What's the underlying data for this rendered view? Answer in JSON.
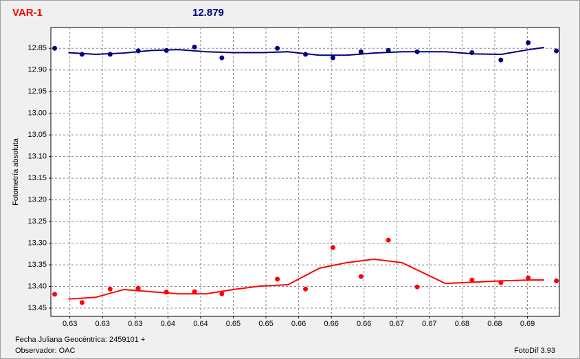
{
  "chart_data": {
    "type": "scatter-line",
    "title": "VAR-1",
    "subtitle": "12.879",
    "y_label": "Fotometría absoluta",
    "x_label": "Fecha Juliana Geocéntrica: 2459101 +",
    "observer": "Observador: OAC",
    "software": "FotoDif 3.93",
    "xlim": [
      0.6235,
      0.6904
    ],
    "ylim": [
      12.802,
      13.469
    ],
    "y_inverted": true,
    "grid": true,
    "xticks": [
      {
        "value": 0.626,
        "label": "0.63"
      },
      {
        "value": 0.6303,
        "label": "0.63"
      },
      {
        "value": 0.6346,
        "label": "0.63"
      },
      {
        "value": 0.6389,
        "label": "0.64"
      },
      {
        "value": 0.6432,
        "label": "0.64"
      },
      {
        "value": 0.6475,
        "label": "0.65"
      },
      {
        "value": 0.6518,
        "label": "0.65"
      },
      {
        "value": 0.6561,
        "label": "0.66"
      },
      {
        "value": 0.6604,
        "label": "0.66"
      },
      {
        "value": 0.6647,
        "label": "0.66"
      },
      {
        "value": 0.669,
        "label": "0.67"
      },
      {
        "value": 0.6733,
        "label": "0.67"
      },
      {
        "value": 0.6776,
        "label": "0.68"
      },
      {
        "value": 0.6819,
        "label": "0.68"
      },
      {
        "value": 0.6862,
        "label": "0.69"
      }
    ],
    "yticks": [
      12.85,
      {
        "value": 12.9,
        "label": "12.90"
      },
      12.95,
      {
        "value": 13.0,
        "label": "13.00"
      },
      13.05,
      {
        "value": 13.1,
        "label": "13.10"
      },
      13.15,
      {
        "value": 13.2,
        "label": "13.20"
      },
      13.25,
      {
        "value": 13.3,
        "label": "13.30"
      },
      13.35,
      {
        "value": 13.4,
        "label": "13.40"
      },
      13.45
    ],
    "series": [
      {
        "style": "points",
        "color": "#000080",
        "x": [
          0.624,
          0.6276,
          0.6313,
          0.635,
          0.6387,
          0.6424,
          0.646,
          0.6533,
          0.657,
          0.6606,
          0.6643,
          0.6679,
          0.6717,
          0.6789,
          0.6827,
          0.6863,
          0.69
        ],
        "values": [
          12.85,
          12.864,
          12.864,
          12.856,
          12.855,
          12.847,
          12.872,
          12.85,
          12.864,
          12.872,
          12.858,
          12.855,
          12.858,
          12.86,
          12.877,
          12.837,
          12.856
        ]
      },
      {
        "style": "points",
        "color": "#ff0000",
        "x": [
          0.624,
          0.6276,
          0.6313,
          0.635,
          0.6387,
          0.6424,
          0.646,
          0.6533,
          0.657,
          0.6606,
          0.6643,
          0.6679,
          0.6717,
          0.6789,
          0.6827,
          0.6863,
          0.69
        ],
        "values": [
          13.418,
          13.437,
          13.406,
          13.404,
          13.413,
          13.412,
          13.417,
          13.383,
          13.406,
          13.31,
          13.377,
          13.293,
          13.401,
          13.385,
          13.391,
          13.38,
          13.387
        ]
      },
      {
        "style": "line",
        "color": "#000080",
        "x": [
          0.6258,
          0.6294,
          0.6331,
          0.6367,
          0.6403,
          0.6439,
          0.6475,
          0.6511,
          0.6547,
          0.6588,
          0.6624,
          0.666,
          0.6697,
          0.6754,
          0.6792,
          0.6828,
          0.6864,
          0.6884
        ],
        "values": [
          12.86,
          12.864,
          12.861,
          12.855,
          12.853,
          12.858,
          12.86,
          12.86,
          12.858,
          12.866,
          12.866,
          12.861,
          12.858,
          12.858,
          12.863,
          12.864,
          12.853,
          12.848
        ]
      },
      {
        "style": "line",
        "color": "#ff0000",
        "x": [
          0.6258,
          0.6294,
          0.6331,
          0.6367,
          0.6403,
          0.6439,
          0.6475,
          0.6511,
          0.6547,
          0.6588,
          0.6624,
          0.666,
          0.6697,
          0.6754,
          0.6792,
          0.6828,
          0.6864,
          0.6884
        ],
        "values": [
          13.429,
          13.425,
          13.407,
          13.412,
          13.417,
          13.417,
          13.407,
          13.399,
          13.396,
          13.358,
          13.345,
          13.337,
          13.345,
          13.393,
          13.39,
          13.387,
          13.385,
          13.385
        ]
      }
    ]
  }
}
